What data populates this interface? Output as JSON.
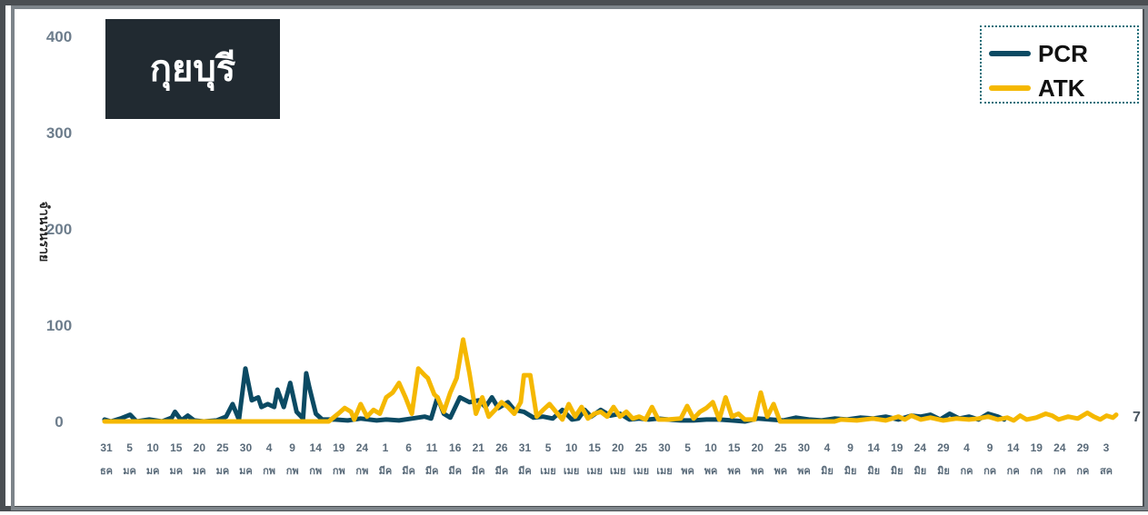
{
  "title": "กุยบุรี",
  "chart_data": {
    "type": "line",
    "ylabel": "จำนวนราย",
    "ylim": [
      0,
      400
    ],
    "yticks": [
      "0",
      "100",
      "200",
      "300",
      "400"
    ],
    "grid": false,
    "legend_position": "top-right",
    "end_label": "7",
    "xtick_days": [
      "31",
      "5",
      "10",
      "15",
      "20",
      "25",
      "30",
      "4",
      "9",
      "14",
      "19",
      "24",
      "1",
      "6",
      "11",
      "16",
      "21",
      "26",
      "31",
      "5",
      "10",
      "15",
      "20",
      "25",
      "30",
      "5",
      "10",
      "15",
      "20",
      "25",
      "30",
      "4",
      "9",
      "14",
      "19",
      "24",
      "29",
      "4",
      "9",
      "14",
      "19",
      "24",
      "29",
      "3"
    ],
    "xtick_months": [
      "ธค",
      "มค",
      "มค",
      "มค",
      "มค",
      "มค",
      "มค",
      "กพ",
      "กพ",
      "กพ",
      "กพ",
      "กพ",
      "มีค",
      "มีค",
      "มีค",
      "มีค",
      "มีค",
      "มีค",
      "มีค",
      "เมย",
      "เมย",
      "เมย",
      "เมย",
      "เมย",
      "เมย",
      "พค",
      "พค",
      "พค",
      "พค",
      "พค",
      "พค",
      "มิย",
      "มิย",
      "มิย",
      "มิย",
      "มิย",
      "มิย",
      "กค",
      "กค",
      "กค",
      "กค",
      "กค",
      "กค",
      "สค"
    ],
    "series": [
      {
        "name": "PCR",
        "color": "#0b4a63",
        "points": [
          [
            0,
            2
          ],
          [
            2,
            0
          ],
          [
            5,
            3
          ],
          [
            8,
            7
          ],
          [
            10,
            0
          ],
          [
            14,
            2
          ],
          [
            18,
            0
          ],
          [
            21,
            4
          ],
          [
            22,
            10
          ],
          [
            24,
            1
          ],
          [
            26,
            6
          ],
          [
            28,
            1
          ],
          [
            31,
            0
          ],
          [
            35,
            1
          ],
          [
            38,
            5
          ],
          [
            40,
            18
          ],
          [
            42,
            2
          ],
          [
            44,
            55
          ],
          [
            46,
            22
          ],
          [
            48,
            25
          ],
          [
            49,
            15
          ],
          [
            51,
            18
          ],
          [
            53,
            15
          ],
          [
            54,
            33
          ],
          [
            56,
            15
          ],
          [
            58,
            40
          ],
          [
            60,
            10
          ],
          [
            62,
            3
          ],
          [
            63,
            50
          ],
          [
            64,
            35
          ],
          [
            66,
            8
          ],
          [
            68,
            2
          ],
          [
            72,
            2
          ],
          [
            76,
            1
          ],
          [
            80,
            3
          ],
          [
            85,
            1
          ],
          [
            88,
            2
          ],
          [
            92,
            1
          ],
          [
            96,
            3
          ],
          [
            100,
            5
          ],
          [
            102,
            3
          ],
          [
            104,
            25
          ],
          [
            106,
            8
          ],
          [
            108,
            4
          ],
          [
            111,
            25
          ],
          [
            114,
            20
          ],
          [
            117,
            22
          ],
          [
            119,
            15
          ],
          [
            121,
            25
          ],
          [
            123,
            14
          ],
          [
            126,
            20
          ],
          [
            128,
            12
          ],
          [
            131,
            10
          ],
          [
            134,
            4
          ],
          [
            137,
            5
          ],
          [
            140,
            3
          ],
          [
            143,
            12
          ],
          [
            146,
            2
          ],
          [
            148,
            3
          ],
          [
            150,
            12
          ],
          [
            152,
            5
          ],
          [
            155,
            12
          ],
          [
            158,
            6
          ],
          [
            161,
            8
          ],
          [
            164,
            2
          ],
          [
            167,
            3
          ],
          [
            170,
            2
          ],
          [
            173,
            3
          ],
          [
            176,
            2
          ],
          [
            180,
            1
          ],
          [
            184,
            1
          ],
          [
            188,
            2
          ],
          [
            192,
            2
          ],
          [
            196,
            1
          ],
          [
            200,
            0
          ],
          [
            204,
            3
          ],
          [
            208,
            2
          ],
          [
            212,
            1
          ],
          [
            216,
            4
          ],
          [
            220,
            2
          ],
          [
            224,
            1
          ],
          [
            228,
            3
          ],
          [
            232,
            2
          ],
          [
            236,
            4
          ],
          [
            240,
            3
          ],
          [
            244,
            5
          ],
          [
            248,
            2
          ],
          [
            252,
            6
          ],
          [
            255,
            5
          ],
          [
            258,
            7
          ],
          [
            261,
            2
          ],
          [
            264,
            8
          ],
          [
            267,
            3
          ],
          [
            270,
            5
          ],
          [
            273,
            2
          ],
          [
            276,
            8
          ],
          [
            279,
            5
          ],
          [
            281,
            2
          ]
        ]
      },
      {
        "name": "ATK",
        "color": "#f5b800",
        "points": [
          [
            0,
            0
          ],
          [
            20,
            0
          ],
          [
            40,
            0
          ],
          [
            60,
            0
          ],
          [
            70,
            0
          ],
          [
            73,
            8
          ],
          [
            75,
            14
          ],
          [
            77,
            10
          ],
          [
            78,
            2
          ],
          [
            80,
            18
          ],
          [
            82,
            5
          ],
          [
            84,
            12
          ],
          [
            86,
            8
          ],
          [
            88,
            25
          ],
          [
            90,
            30
          ],
          [
            92,
            40
          ],
          [
            94,
            25
          ],
          [
            96,
            8
          ],
          [
            98,
            55
          ],
          [
            100,
            48
          ],
          [
            101,
            45
          ],
          [
            103,
            28
          ],
          [
            104,
            25
          ],
          [
            106,
            10
          ],
          [
            108,
            30
          ],
          [
            110,
            45
          ],
          [
            112,
            85
          ],
          [
            114,
            50
          ],
          [
            116,
            8
          ],
          [
            118,
            25
          ],
          [
            120,
            5
          ],
          [
            122,
            12
          ],
          [
            124,
            20
          ],
          [
            126,
            15
          ],
          [
            128,
            8
          ],
          [
            130,
            20
          ],
          [
            131,
            48
          ],
          [
            133,
            48
          ],
          [
            135,
            5
          ],
          [
            137,
            12
          ],
          [
            139,
            18
          ],
          [
            141,
            10
          ],
          [
            143,
            2
          ],
          [
            145,
            18
          ],
          [
            147,
            5
          ],
          [
            149,
            15
          ],
          [
            151,
            3
          ],
          [
            153,
            8
          ],
          [
            155,
            10
          ],
          [
            157,
            5
          ],
          [
            159,
            15
          ],
          [
            161,
            5
          ],
          [
            163,
            10
          ],
          [
            165,
            3
          ],
          [
            167,
            5
          ],
          [
            169,
            2
          ],
          [
            171,
            15
          ],
          [
            173,
            2
          ],
          [
            176,
            2
          ],
          [
            180,
            3
          ],
          [
            182,
            16
          ],
          [
            184,
            3
          ],
          [
            186,
            10
          ],
          [
            188,
            14
          ],
          [
            190,
            20
          ],
          [
            192,
            2
          ],
          [
            194,
            25
          ],
          [
            196,
            5
          ],
          [
            198,
            8
          ],
          [
            200,
            2
          ],
          [
            203,
            2
          ],
          [
            205,
            30
          ],
          [
            207,
            5
          ],
          [
            209,
            18
          ],
          [
            211,
            0
          ],
          [
            220,
            0
          ],
          [
            228,
            0
          ],
          [
            230,
            2
          ],
          [
            235,
            1
          ],
          [
            240,
            3
          ],
          [
            244,
            1
          ],
          [
            248,
            5
          ],
          [
            250,
            2
          ],
          [
            252,
            6
          ],
          [
            255,
            2
          ],
          [
            258,
            4
          ],
          [
            262,
            1
          ],
          [
            266,
            3
          ],
          [
            270,
            2
          ],
          [
            273,
            3
          ],
          [
            276,
            5
          ],
          [
            279,
            2
          ],
          [
            282,
            4
          ],
          [
            284,
            1
          ],
          [
            286,
            6
          ],
          [
            288,
            2
          ],
          [
            291,
            4
          ],
          [
            294,
            8
          ],
          [
            296,
            6
          ],
          [
            298,
            2
          ],
          [
            301,
            5
          ],
          [
            304,
            3
          ],
          [
            307,
            9
          ],
          [
            309,
            5
          ],
          [
            311,
            2
          ],
          [
            313,
            6
          ],
          [
            315,
            4
          ],
          [
            316,
            7
          ]
        ]
      }
    ]
  }
}
